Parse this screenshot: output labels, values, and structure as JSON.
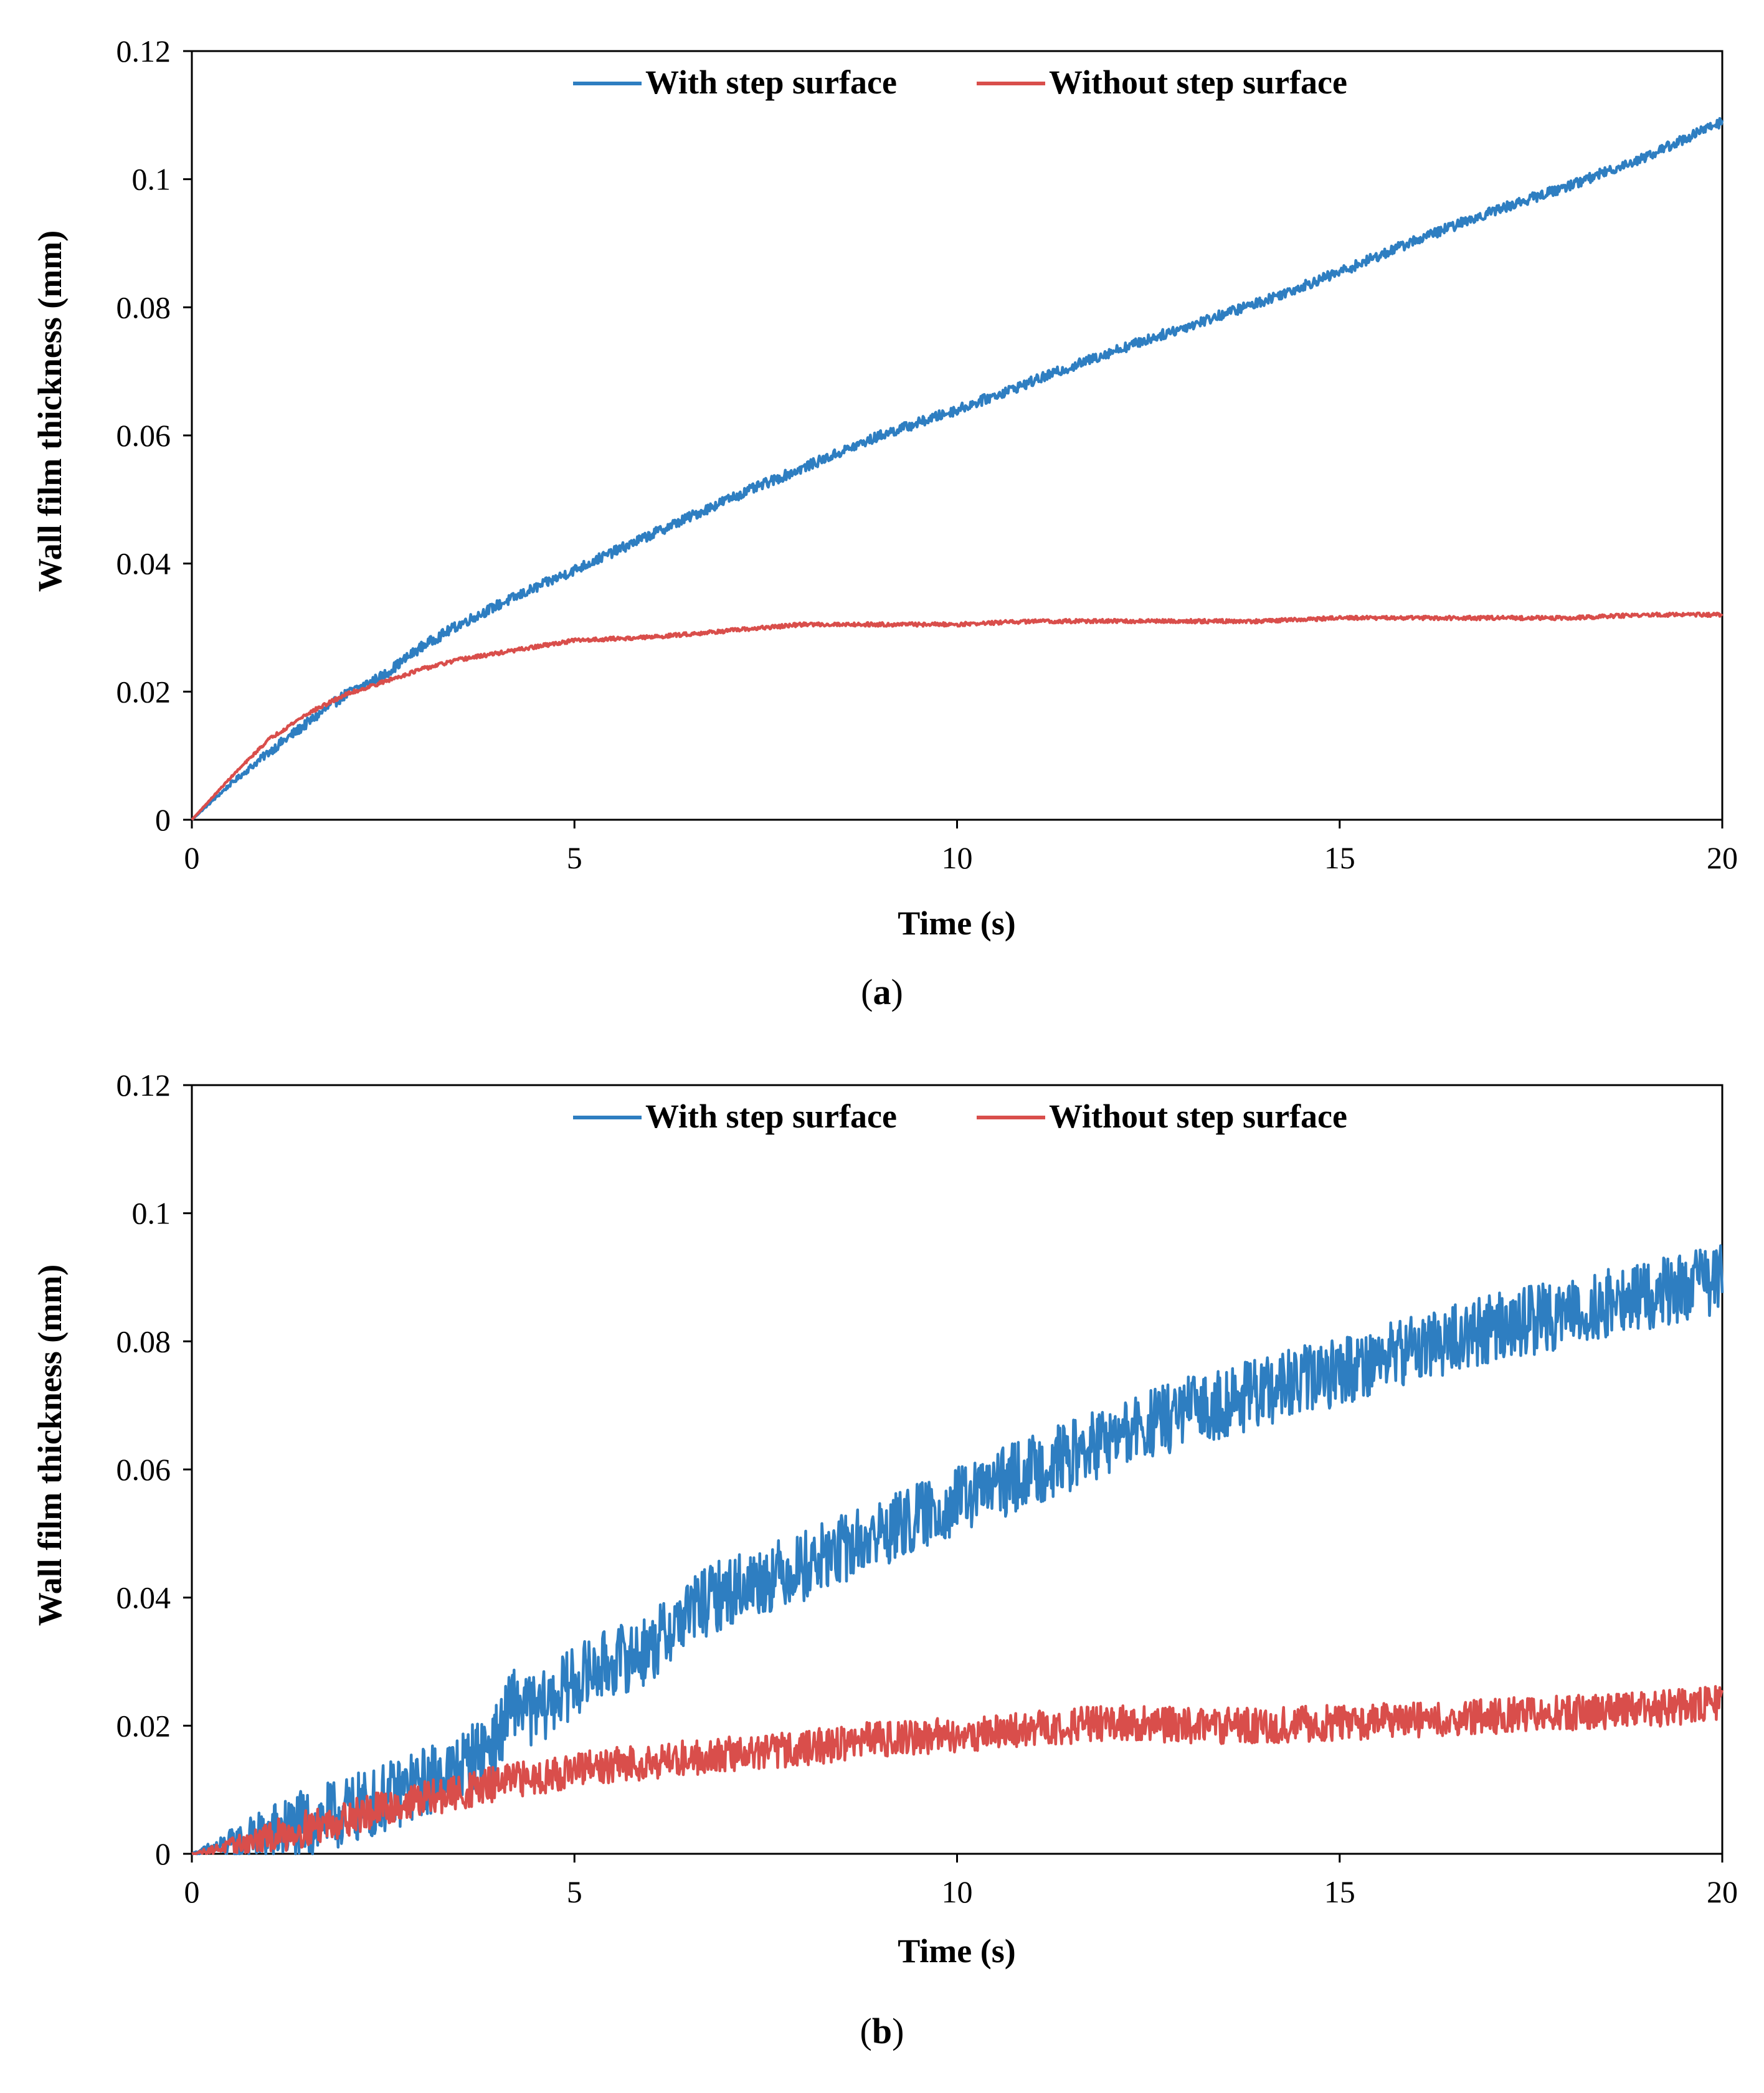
{
  "chart_data": [
    {
      "type": "line",
      "panel_label": "a",
      "xlabel": "Time (s)",
      "ylabel": "Wall film thickness (mm)",
      "xlim": [
        0,
        20
      ],
      "ylim": [
        0,
        0.12
      ],
      "x_ticks": [
        "0",
        "5",
        "10",
        "15",
        "20"
      ],
      "y_ticks": [
        "0",
        "0.02",
        "0.04",
        "0.06",
        "0.08",
        "0.1",
        "0.12"
      ],
      "grid": false,
      "legend_position": "top-center",
      "series": [
        {
          "name": "With step surface",
          "color": "#2E7EC1",
          "noise": 0.0008,
          "x": [
            0,
            0.5,
            1,
            1.5,
            2,
            2.5,
            3,
            3.5,
            4,
            5,
            6,
            7,
            8,
            9,
            10,
            11,
            12,
            13,
            14,
            15,
            16,
            17,
            18,
            19,
            20
          ],
          "y": [
            0,
            0.0055,
            0.0105,
            0.015,
            0.0195,
            0.0225,
            0.027,
            0.0305,
            0.0335,
            0.039,
            0.0445,
            0.05,
            0.055,
            0.06,
            0.064,
            0.0685,
            0.073,
            0.077,
            0.081,
            0.0855,
            0.0905,
            0.095,
            0.099,
            0.1035,
            0.109
          ]
        },
        {
          "name": "Without step surface",
          "color": "#D94E4B",
          "noise": 0.0003,
          "x": [
            0,
            0.5,
            1,
            1.5,
            2,
            2.5,
            3,
            3.5,
            4,
            5,
            6,
            7,
            8,
            9,
            10,
            11,
            12,
            13,
            14,
            15,
            16,
            17,
            18,
            19,
            20
          ],
          "y": [
            0,
            0.0065,
            0.0125,
            0.0165,
            0.0195,
            0.0215,
            0.0235,
            0.025,
            0.026,
            0.028,
            0.0285,
            0.0295,
            0.0305,
            0.0305,
            0.0305,
            0.031,
            0.031,
            0.031,
            0.031,
            0.0315,
            0.0315,
            0.0315,
            0.0315,
            0.032,
            0.032
          ]
        }
      ]
    },
    {
      "type": "line",
      "panel_label": "b",
      "xlabel": "Time (s)",
      "ylabel": "Wall film thickness (mm)",
      "xlim": [
        0,
        20
      ],
      "ylim": [
        0,
        0.12
      ],
      "x_ticks": [
        "0",
        "5",
        "10",
        "15",
        "20"
      ],
      "y_ticks": [
        "0",
        "0.02",
        "0.04",
        "0.06",
        "0.08",
        "0.1",
        "0.12"
      ],
      "grid": false,
      "legend_position": "top-center",
      "series": [
        {
          "name": "With step surface",
          "color": "#2E7EC1",
          "noise": 0.0055,
          "x": [
            0,
            0.5,
            1,
            1.5,
            2,
            2.5,
            3,
            3.5,
            4,
            4.2,
            4.5,
            5,
            5.5,
            6,
            6.5,
            7,
            8,
            9,
            10,
            11,
            12,
            13,
            14,
            15,
            16,
            17,
            18,
            19,
            20
          ],
          "y": [
            0,
            0.0015,
            0.003,
            0.0045,
            0.0065,
            0.0085,
            0.011,
            0.0135,
            0.018,
            0.024,
            0.022,
            0.027,
            0.03,
            0.032,
            0.038,
            0.041,
            0.045,
            0.05,
            0.055,
            0.06,
            0.0645,
            0.069,
            0.072,
            0.0755,
            0.079,
            0.082,
            0.0845,
            0.087,
            0.09
          ]
        },
        {
          "name": "Without step surface",
          "color": "#D94E4B",
          "noise": 0.0028,
          "x": [
            0,
            0.5,
            1,
            1.5,
            2,
            2.5,
            3,
            3.5,
            4,
            5,
            6,
            7,
            8,
            9,
            10,
            11,
            12,
            13,
            14,
            15,
            16,
            17,
            18,
            19,
            20
          ],
          "y": [
            0,
            0.0012,
            0.0025,
            0.004,
            0.0055,
            0.007,
            0.0085,
            0.0095,
            0.011,
            0.013,
            0.0145,
            0.0155,
            0.0165,
            0.018,
            0.0185,
            0.0195,
            0.0205,
            0.02,
            0.02,
            0.0205,
            0.021,
            0.0215,
            0.022,
            0.0225,
            0.0235
          ]
        }
      ]
    }
  ]
}
